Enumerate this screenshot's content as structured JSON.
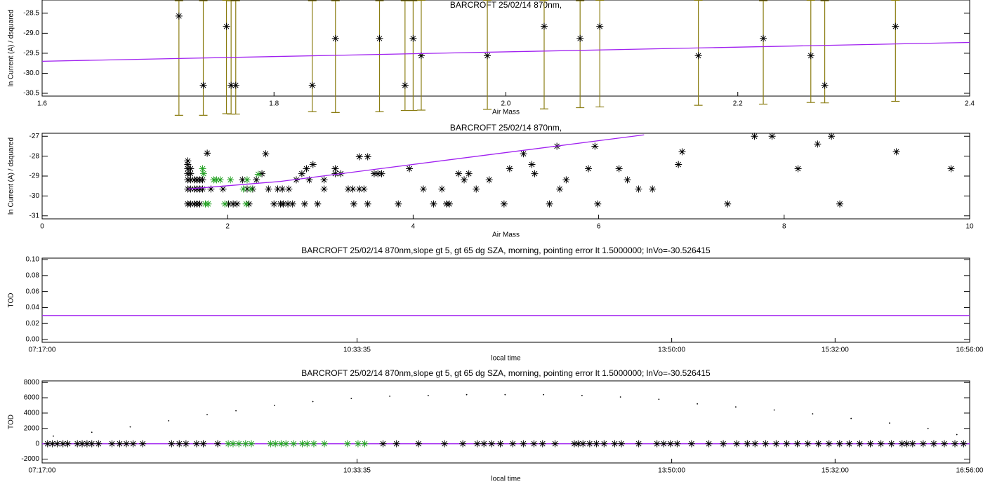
{
  "chart_data": [
    {
      "type": "scatter",
      "title": "BARCROFT 25/02/14 870nm,",
      "x_label": "Air Mass",
      "y_label": "ln Current (A) / dsquared",
      "xlim": [
        1.6,
        2.4
      ],
      "xticks": [
        1.6,
        1.8,
        {
          "value": 2,
          "label": "2.0"
        },
        2.2,
        2.4
      ],
      "ylim": [
        -30.57,
        -28.17
      ],
      "yticks": [
        -28.5,
        {
          "value": -29,
          "label": "-29.0"
        },
        -29.5,
        {
          "value": -30,
          "label": "-30.0"
        },
        -30.5
      ],
      "series": [
        {
          "color": "#000000",
          "marker": "asterisk",
          "error_color": "#8b7d12",
          "x": [
            1.718,
            1.739,
            1.759,
            1.763,
            1.767,
            1.833,
            1.853,
            1.891,
            1.913,
            1.92,
            1.927,
            1.984,
            2.033,
            2.064,
            2.081,
            2.166,
            2.222,
            2.263,
            2.275,
            2.336
          ],
          "values": [
            -28.57,
            -30.3,
            -28.83,
            -30.3,
            -30.3,
            -30.3,
            -29.13,
            -29.13,
            -30.3,
            -29.13,
            -29.56,
            -29.56,
            -28.83,
            -29.13,
            -28.83,
            -29.56,
            -29.13,
            -29.56,
            -30.3,
            -28.83
          ],
          "error_minus": [
            2.48,
            0.75,
            2.18,
            0.72,
            0.72,
            0.66,
            1.85,
            1.83,
            0.63,
            1.8,
            1.36,
            1.34,
            2.06,
            1.73,
            2.01,
            1.24,
            1.64,
            1.17,
            0.44,
            1.87
          ],
          "error_plus": [
            0.38,
            2.11,
            0.65,
            2.11,
            2.11,
            2.11,
            0.94,
            0.94,
            2.11,
            0.94,
            1.38,
            1.38,
            0.65,
            0.94,
            0.65,
            1.38,
            0.94,
            1.38,
            2.11,
            0.65
          ]
        },
        {
          "color": "#a020f0",
          "marker": "none",
          "line": true,
          "x": [
            1.6,
            2.4
          ],
          "values": [
            -29.7,
            -29.23
          ]
        }
      ]
    },
    {
      "type": "scatter",
      "title": "BARCROFT 25/02/14 870nm,",
      "x_label": "Air Mass",
      "y_label": "ln Current (A) / dsquared",
      "xlim": [
        0,
        10
      ],
      "xticks": [
        0,
        2,
        4,
        6,
        8,
        10
      ],
      "ylim": [
        -31.15,
        -26.85
      ],
      "yticks": [
        -27,
        -28,
        -29,
        -30,
        -31
      ],
      "series": [
        {
          "color": "#000000",
          "marker": "asterisk",
          "x": [
            1.57,
            1.57,
            1.57,
            1.57,
            1.57,
            1.57,
            1.57,
            1.6,
            1.6,
            1.6,
            1.6,
            1.6,
            1.64,
            1.64,
            1.64,
            1.67,
            1.67,
            1.67,
            1.7,
            1.7,
            1.7,
            1.73,
            1.73,
            1.78,
            1.82,
            1.95,
            2.01,
            2.06,
            2.1,
            2.16,
            2.21,
            2.23,
            2.27,
            2.31,
            2.37,
            2.41,
            2.44,
            2.5,
            2.54,
            2.57,
            2.59,
            2.6,
            2.65,
            2.66,
            2.7,
            2.74,
            2.8,
            2.83,
            2.85,
            2.88,
            2.92,
            2.97,
            3.04,
            3.04,
            3.16,
            3.16,
            3.22,
            3.3,
            3.35,
            3.36,
            3.42,
            3.42,
            3.47,
            3.51,
            3.51,
            3.58,
            3.62,
            3.66,
            3.84,
            3.96,
            4.11,
            4.22,
            4.31,
            4.36,
            4.39,
            4.49,
            4.55,
            4.6,
            4.68,
            4.82,
            4.98,
            5.04,
            5.19,
            5.28,
            5.31,
            5.47,
            5.55,
            5.58,
            5.65,
            5.89,
            5.96,
            5.99,
            6.22,
            6.31,
            6.43,
            6.58,
            6.86,
            6.9,
            7.39,
            7.68,
            7.87,
            8.15,
            8.36,
            8.51,
            8.6,
            9.21,
            9.8
          ],
          "values": [
            -30.4,
            -29.65,
            -29.19,
            -28.88,
            -28.63,
            -28.42,
            -28.24,
            -30.4,
            -29.65,
            -29.19,
            -28.88,
            -28.63,
            -30.4,
            -29.65,
            -29.19,
            -30.4,
            -29.65,
            -29.19,
            -30.4,
            -29.65,
            -29.19,
            -29.65,
            -29.19,
            -27.85,
            -29.65,
            -29.65,
            -30.4,
            -30.4,
            -30.4,
            -29.19,
            -29.65,
            -30.4,
            -29.65,
            -29.19,
            -28.88,
            -27.88,
            -29.65,
            -30.4,
            -29.65,
            -30.4,
            -29.65,
            -30.4,
            -30.4,
            -29.65,
            -30.4,
            -29.19,
            -28.88,
            -30.4,
            -28.63,
            -29.19,
            -28.42,
            -30.4,
            -29.65,
            -29.19,
            -28.88,
            -28.63,
            -28.88,
            -29.65,
            -29.65,
            -30.4,
            -29.65,
            -28.03,
            -29.65,
            -28.03,
            -30.4,
            -28.88,
            -28.88,
            -28.88,
            -30.4,
            -28.63,
            -29.65,
            -30.4,
            -29.65,
            -30.4,
            -30.4,
            -28.88,
            -29.19,
            -28.88,
            -29.65,
            -29.19,
            -30.4,
            -28.63,
            -27.88,
            -28.42,
            -28.88,
            -30.4,
            -27.5,
            -29.65,
            -29.19,
            -28.63,
            -27.5,
            -30.4,
            -28.63,
            -29.19,
            -29.65,
            -29.65,
            -28.42,
            -27.78,
            -30.4,
            -27.0,
            -27.0,
            -28.63,
            -27.39,
            -27.0,
            -30.4,
            -27.78,
            -28.63
          ]
        },
        {
          "color": "#22a022",
          "marker": "asterisk",
          "x": [
            1.73,
            1.74,
            1.76,
            1.79,
            1.85,
            1.88,
            1.92,
            1.97,
            2.03,
            2.17,
            2.2,
            2.21,
            2.25,
            2.33
          ],
          "values": [
            -28.63,
            -28.88,
            -30.4,
            -30.4,
            -29.19,
            -29.19,
            -29.19,
            -30.4,
            -29.19,
            -29.65,
            -30.4,
            -29.19,
            -29.65,
            -28.91
          ]
        },
        {
          "color": "#a020f0",
          "marker": "none",
          "line": true,
          "x": [
            1.57,
            2.57,
            6.49
          ],
          "values": [
            -29.65,
            -29.27,
            -26.93
          ]
        }
      ]
    },
    {
      "type": "scatter",
      "title": "BARCROFT 25/02/14 870nm,slope gt 5, gt 65 dg SZA, morning, pointing error lt 1.5000000; lnVo=-30.526415",
      "x_label": "local time",
      "y_label": "TOD",
      "xlim": [
        7.2833,
        16.9333
      ],
      "xticks": [
        {
          "value": 7.2833,
          "label": "07:17:00"
        },
        {
          "value": 10.5597,
          "label": "10:33:35"
        },
        {
          "value": 13.8333,
          "label": "13:50:00"
        },
        {
          "value": 15.5333,
          "label": "15:32:00"
        },
        {
          "value": 16.9333,
          "label": "16:56:00"
        }
      ],
      "ylim": [
        -0.0035,
        0.1018
      ],
      "yticks": [
        {
          "value": 0,
          "label": "0.00"
        },
        {
          "value": 0.02,
          "label": "0.02"
        },
        {
          "value": 0.04,
          "label": "0.04"
        },
        {
          "value": 0.06,
          "label": "0.06"
        },
        {
          "value": 0.08,
          "label": "0.08"
        },
        {
          "value": 0.1,
          "label": "0.10"
        }
      ],
      "series": [
        {
          "color": "#a020f0",
          "marker": "none",
          "line": true,
          "x": [
            7.2833,
            16.9333
          ],
          "values": [
            0.03,
            0.03
          ]
        }
      ]
    },
    {
      "type": "scatter",
      "title": "BARCROFT 25/02/14 870nm,slope gt 5, gt 65 dg SZA, morning, pointing error lt 1.5000000; lnVo=-30.526415",
      "x_label": "local time",
      "y_label": "TOD",
      "xlim": [
        7.2833,
        16.9333
      ],
      "xticks": [
        {
          "value": 7.2833,
          "label": "07:17:00"
        },
        {
          "value": 10.5597,
          "label": "10:33:35"
        },
        {
          "value": 13.8333,
          "label": "13:50:00"
        },
        {
          "value": 15.5333,
          "label": "15:32:00"
        },
        {
          "value": 16.9333,
          "label": "16:56:00"
        }
      ],
      "ylim": [
        -2500,
        8200
      ],
      "yticks": [
        -2000,
        0,
        2000,
        4000,
        6000,
        8000
      ],
      "series": [
        {
          "color": "#000000",
          "marker": "dot",
          "x": [
            7.4,
            7.8,
            8.2,
            8.6,
            9.0,
            9.3,
            9.7,
            10.1,
            10.5,
            10.9,
            11.3,
            11.7,
            12.1,
            12.5,
            12.9,
            13.3,
            13.7,
            14.1,
            14.5,
            14.9,
            15.3,
            15.7,
            16.1,
            16.5,
            16.8
          ],
          "values": [
            1000,
            1500,
            2200,
            3000,
            3800,
            4300,
            5000,
            5500,
            5900,
            6200,
            6300,
            6400,
            6400,
            6400,
            6300,
            6100,
            5800,
            5200,
            4800,
            4400,
            3900,
            3300,
            2700,
            2000,
            1200
          ]
        },
        {
          "color": "#a020f0",
          "marker": "none",
          "line": true,
          "x": [
            7.2833,
            16.9333
          ],
          "values": [
            0,
            0
          ]
        },
        {
          "color": "#000000",
          "marker": "asterisk",
          "x": [
            7.34,
            7.39,
            7.44,
            7.5,
            7.55,
            7.65,
            7.7,
            7.75,
            7.8,
            7.87,
            8.01,
            8.09,
            8.16,
            8.23,
            8.33,
            8.63,
            8.71,
            8.78,
            8.89,
            8.96,
            9.11,
            10.83,
            10.97,
            11.2,
            11.47,
            11.66,
            11.81,
            11.88,
            11.96,
            12.05,
            12.18,
            12.29,
            12.4,
            12.49,
            12.62,
            12.82,
            12.86,
            12.91,
            12.98,
            13.05,
            13.13,
            13.24,
            13.31,
            13.49,
            13.68,
            13.75,
            13.82,
            13.89,
            14.04,
            14.22,
            14.37,
            14.51,
            14.62,
            14.7,
            14.81,
            14.92,
            15.03,
            15.14,
            15.25,
            15.36,
            15.47,
            15.58,
            15.68,
            15.79,
            15.9,
            16.01,
            16.12,
            16.23,
            16.28,
            16.34,
            16.45,
            16.56,
            16.67,
            16.78,
            16.87
          ],
          "values": [
            0,
            0,
            0,
            0,
            0,
            0,
            0,
            0,
            0,
            0,
            0,
            0,
            0,
            0,
            0,
            0,
            0,
            0,
            0,
            0,
            0,
            0,
            0,
            0,
            0,
            0,
            0,
            0,
            0,
            0,
            0,
            0,
            0,
            0,
            0,
            0,
            0,
            0,
            0,
            0,
            0,
            0,
            0,
            0,
            0,
            0,
            0,
            0,
            0,
            0,
            0,
            0,
            0,
            0,
            0,
            0,
            0,
            0,
            0,
            0,
            0,
            0,
            0,
            0,
            0,
            0,
            0,
            0,
            0,
            0,
            0,
            0,
            0,
            0,
            0
          ]
        },
        {
          "color": "#22a022",
          "marker": "asterisk",
          "x": [
            9.22,
            9.27,
            9.33,
            9.4,
            9.46,
            9.66,
            9.71,
            9.77,
            9.82,
            9.9,
            9.99,
            10.04,
            10.11,
            10.22,
            10.46,
            10.57,
            10.64
          ],
          "values": [
            0,
            0,
            0,
            0,
            0,
            0,
            0,
            0,
            0,
            0,
            0,
            0,
            0,
            0,
            0,
            0,
            0
          ]
        }
      ]
    }
  ]
}
